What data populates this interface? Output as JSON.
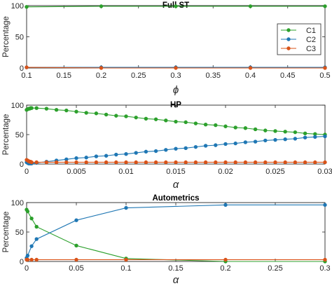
{
  "chart_data": [
    {
      "type": "line",
      "title": "Full ST",
      "xlabel": "ϕ",
      "ylabel": "Percentage",
      "xlim": [
        0.1,
        0.5
      ],
      "ylim": [
        0,
        100
      ],
      "xticks": [
        "0.1",
        "0.15",
        "0.2",
        "0.25",
        "0.3",
        "0.35",
        "0.4",
        "0.45",
        "0.5"
      ],
      "yticks": [
        "0",
        "50",
        "100"
      ],
      "grid": false,
      "legend_position": "right",
      "series": [
        {
          "name": "C1",
          "color": "#2ca02c",
          "x": [
            0.1,
            0.2,
            0.3,
            0.4,
            0.5
          ],
          "y": [
            98,
            99,
            99,
            99,
            99
          ]
        },
        {
          "name": "C2",
          "color": "#1f77b4",
          "x": [
            0.1,
            0.2,
            0.3,
            0.4,
            0.5
          ],
          "y": [
            1,
            1,
            1,
            1,
            1
          ]
        },
        {
          "name": "C3",
          "color": "#d95319",
          "x": [
            0.1,
            0.2,
            0.3,
            0.4,
            0.5
          ],
          "y": [
            1,
            0,
            0,
            0,
            0
          ]
        }
      ]
    },
    {
      "type": "line",
      "title": "HP",
      "xlabel": "α",
      "ylabel": "Percentage",
      "xlim": [
        0,
        0.03
      ],
      "ylim": [
        0,
        100
      ],
      "xticks": [
        "0",
        "0.005",
        "0.01",
        "0.015",
        "0.02",
        "0.025",
        "0.03"
      ],
      "yticks": [
        "0",
        "50",
        "100"
      ],
      "grid": false,
      "series": [
        {
          "name": "C1",
          "color": "#2ca02c",
          "x": [
            0,
            0.0001,
            0.0002,
            0.0003,
            0.0004,
            0.0005,
            0.001,
            0.002,
            0.003,
            0.004,
            0.005,
            0.006,
            0.007,
            0.008,
            0.009,
            0.01,
            0.011,
            0.012,
            0.013,
            0.014,
            0.015,
            0.016,
            0.017,
            0.018,
            0.019,
            0.02,
            0.021,
            0.022,
            0.023,
            0.024,
            0.025,
            0.026,
            0.027,
            0.028,
            0.029,
            0.03
          ],
          "y": [
            92,
            93,
            94,
            94,
            95,
            95,
            95,
            94,
            92,
            91,
            89,
            87,
            86,
            84,
            82,
            81,
            79,
            77,
            76,
            74,
            72,
            71,
            69,
            67,
            66,
            64,
            62,
            61,
            59,
            57,
            56,
            55,
            54,
            52,
            51,
            50
          ]
        },
        {
          "name": "C2",
          "color": "#1f77b4",
          "x": [
            0,
            0.0001,
            0.0002,
            0.0003,
            0.0004,
            0.0005,
            0.001,
            0.002,
            0.003,
            0.004,
            0.005,
            0.006,
            0.007,
            0.008,
            0.009,
            0.01,
            0.011,
            0.012,
            0.013,
            0.014,
            0.015,
            0.016,
            0.017,
            0.018,
            0.019,
            0.02,
            0.021,
            0.022,
            0.023,
            0.024,
            0.025,
            0.026,
            0.027,
            0.028,
            0.029,
            0.03
          ],
          "y": [
            3,
            2,
            1,
            1,
            1,
            1,
            2,
            4,
            6,
            8,
            10,
            11,
            13,
            14,
            16,
            17,
            19,
            21,
            22,
            24,
            26,
            27,
            29,
            31,
            32,
            34,
            35,
            37,
            38,
            40,
            41,
            42,
            43,
            45,
            46,
            47
          ]
        },
        {
          "name": "C3",
          "color": "#d95319",
          "x": [
            0,
            0.0001,
            0.0002,
            0.0003,
            0.0004,
            0.0005,
            0.001,
            0.002,
            0.003,
            0.004,
            0.005,
            0.006,
            0.007,
            0.008,
            0.009,
            0.01,
            0.011,
            0.012,
            0.013,
            0.014,
            0.015,
            0.016,
            0.017,
            0.018,
            0.019,
            0.02,
            0.021,
            0.022,
            0.023,
            0.024,
            0.025,
            0.026,
            0.027,
            0.028,
            0.029,
            0.03
          ],
          "y": [
            7,
            6,
            5,
            4,
            4,
            3,
            3,
            3,
            3,
            3,
            3,
            3,
            3,
            3,
            3,
            3,
            3,
            3,
            3,
            3,
            3,
            3,
            3,
            3,
            3,
            3,
            3,
            3,
            3,
            3,
            3,
            3,
            3,
            3,
            3,
            3
          ]
        }
      ]
    },
    {
      "type": "line",
      "title": "Autometrics",
      "xlabel": "α",
      "ylabel": "Percentage",
      "xlim": [
        0,
        0.3
      ],
      "ylim": [
        0,
        100
      ],
      "xticks": [
        "0",
        "0.05",
        "0.1",
        "0.15",
        "0.2",
        "0.25",
        "0.3"
      ],
      "yticks": [
        "0",
        "50",
        "100"
      ],
      "grid": false,
      "series": [
        {
          "name": "C1",
          "color": "#2ca02c",
          "x": [
            0,
            0.001,
            0.005,
            0.01,
            0.05,
            0.1,
            0.2,
            0.3
          ],
          "y": [
            88,
            85,
            73,
            59,
            27,
            5,
            0,
            0
          ]
        },
        {
          "name": "C2",
          "color": "#1f77b4",
          "x": [
            0,
            0.001,
            0.005,
            0.01,
            0.05,
            0.1,
            0.2,
            0.3
          ],
          "y": [
            6,
            10,
            26,
            38,
            70,
            91,
            96,
            96
          ]
        },
        {
          "name": "C3",
          "color": "#d95319",
          "x": [
            0,
            0.001,
            0.005,
            0.01,
            0.05,
            0.1,
            0.2,
            0.3
          ],
          "y": [
            3,
            3,
            3,
            3,
            3,
            3,
            3,
            3
          ]
        }
      ]
    }
  ]
}
